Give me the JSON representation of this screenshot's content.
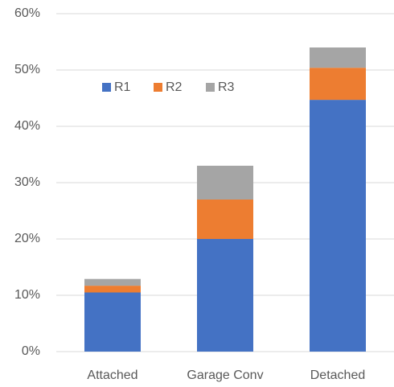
{
  "chart_data": {
    "type": "stacked_bar",
    "categories": [
      "Attached",
      "Garage Conv",
      "Detached"
    ],
    "series": [
      {
        "name": "R1",
        "color": "#4472c4",
        "values": [
          10.5,
          20,
          44.7
        ]
      },
      {
        "name": "R2",
        "color": "#ed7d31",
        "values": [
          1.2,
          7,
          5.7
        ]
      },
      {
        "name": "R3",
        "color": "#a5a5a5",
        "values": [
          1.2,
          6,
          3.6
        ]
      }
    ],
    "ylim": [
      0,
      60
    ],
    "yticks": [
      {
        "value": 0,
        "label": "0%"
      },
      {
        "value": 10,
        "label": "10%"
      },
      {
        "value": 20,
        "label": "20%"
      },
      {
        "value": 30,
        "label": "30%"
      },
      {
        "value": 40,
        "label": "40%"
      },
      {
        "value": 50,
        "label": "50%"
      },
      {
        "value": 60,
        "label": "60%"
      }
    ],
    "grid": true,
    "legend": "top-left"
  }
}
